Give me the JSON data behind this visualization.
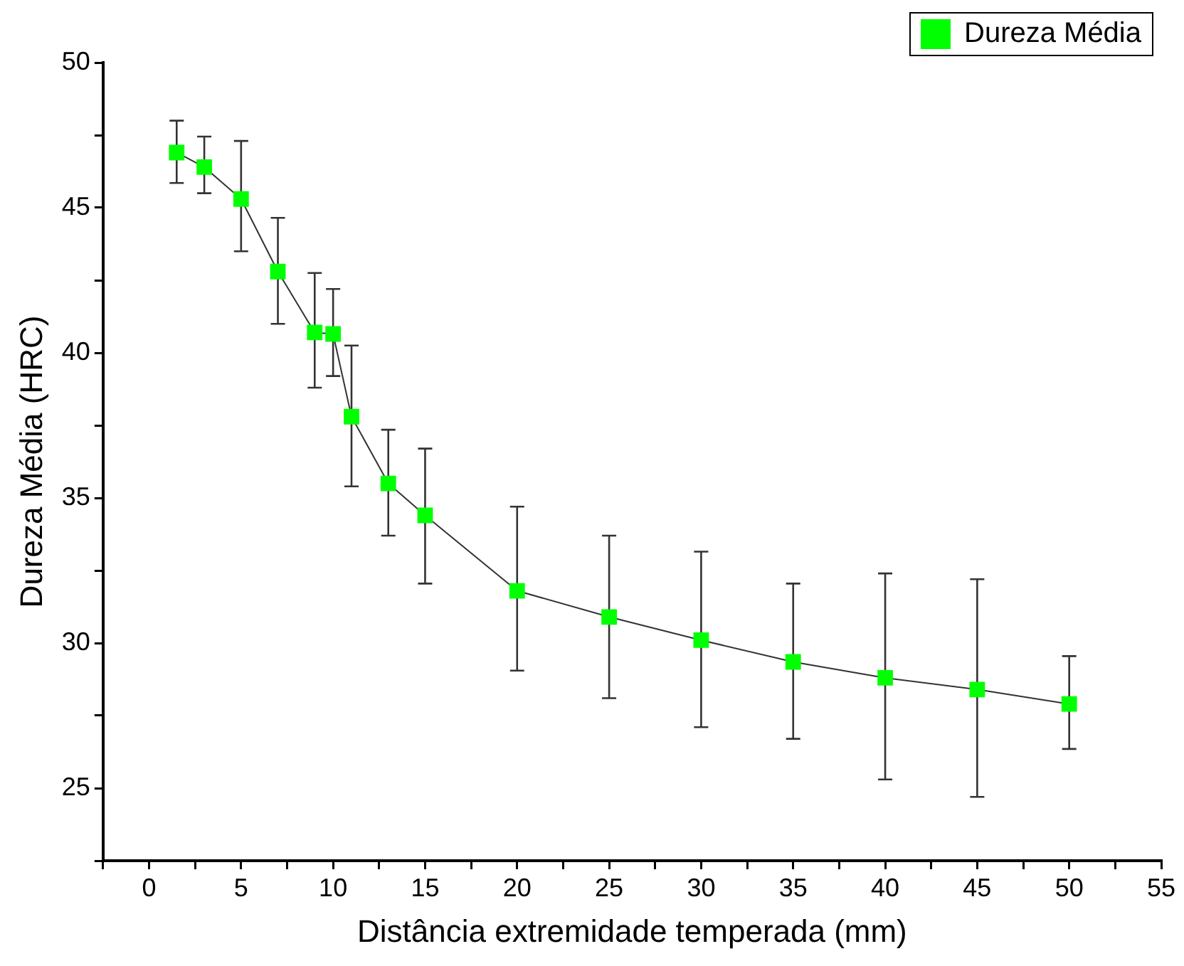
{
  "chart_data": {
    "type": "line",
    "xlabel": "Distância extremidade temperada (mm)",
    "ylabel": "Dureza Média (HRC)",
    "x": [
      1.5,
      3,
      5,
      7,
      9,
      10,
      11,
      13,
      15,
      20,
      25,
      30,
      35,
      40,
      45,
      50
    ],
    "series": [
      {
        "name": "Dureza Média",
        "color": "#00ff00",
        "values": [
          46.9,
          46.4,
          45.3,
          42.8,
          40.7,
          40.65,
          37.8,
          35.5,
          34.4,
          31.8,
          30.9,
          30.1,
          29.35,
          28.8,
          28.4,
          27.9
        ],
        "errors": [
          [
            45.85,
            48.0
          ],
          [
            45.5,
            47.45
          ],
          [
            43.5,
            47.3
          ],
          [
            41.0,
            44.65
          ],
          [
            38.8,
            42.75
          ],
          [
            39.2,
            42.2
          ],
          [
            35.4,
            40.25
          ],
          [
            33.7,
            37.35
          ],
          [
            32.05,
            36.7
          ],
          [
            29.05,
            34.7
          ],
          [
            28.1,
            33.7
          ],
          [
            27.1,
            33.15
          ],
          [
            26.7,
            32.05
          ],
          [
            25.3,
            32.4
          ],
          [
            24.7,
            32.2
          ],
          [
            26.35,
            29.55
          ]
        ]
      }
    ],
    "xlim": [
      -2.5,
      55
    ],
    "ylim": [
      22.5,
      50
    ],
    "xticks": [
      {
        "value": -2.5,
        "label": null
      },
      0,
      {
        "value": 2.5,
        "label": null
      },
      5,
      {
        "value": 7.5,
        "label": null
      },
      10,
      {
        "value": 12.5,
        "label": null
      },
      15,
      {
        "value": 17.5,
        "label": null
      },
      20,
      {
        "value": 22.5,
        "label": null
      },
      25,
      {
        "value": 27.5,
        "label": null
      },
      30,
      {
        "value": 32.5,
        "label": null
      },
      35,
      {
        "value": 37.5,
        "label": null
      },
      40,
      {
        "value": 42.5,
        "label": null
      },
      45,
      {
        "value": 47.5,
        "label": null
      },
      50,
      {
        "value": 52.5,
        "label": null
      },
      55
    ],
    "yticks": [
      {
        "value": 22.5,
        "label": null
      },
      25,
      {
        "value": 27.5,
        "label": null
      },
      30,
      {
        "value": 32.5,
        "label": null
      },
      35,
      {
        "value": 37.5,
        "label": null
      },
      40,
      {
        "value": 42.5,
        "label": null
      },
      45,
      {
        "value": 47.5,
        "label": null
      },
      50
    ],
    "grid": false,
    "legend": "top right",
    "marker": "square",
    "line_style": "solid"
  }
}
